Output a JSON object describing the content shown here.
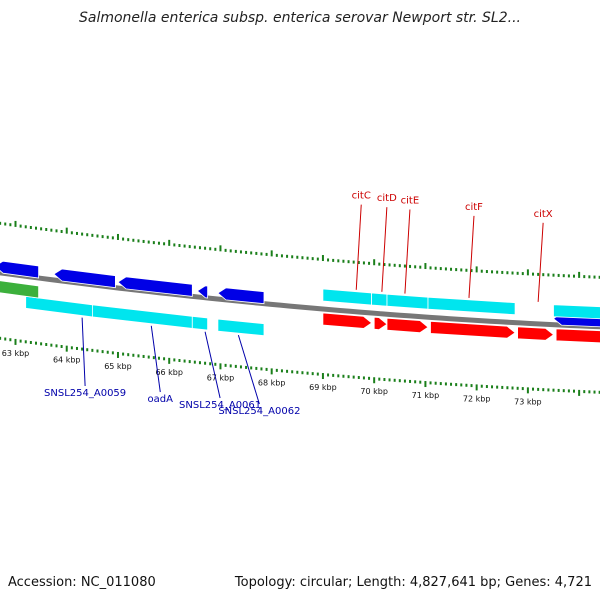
{
  "title": "Salmonella enterica subsp. enterica serovar Newport str. SL2...",
  "footer": {
    "accession": "Accession: NC_011080",
    "summary": "Topology: circular; Length: 4,827,641 bp; Genes: 4,721"
  },
  "colors": {
    "forward_cds": "#00e5ee",
    "reverse_cds": "#0000e6",
    "rna": "#ff0000",
    "highlight": "#3cb03c",
    "backbone": "#777777",
    "tick": "#1a7f1a",
    "red_label": "#cc0000",
    "blue_label": "#0000aa"
  },
  "map": {
    "window_kbp": [
      62.6,
      74.7
    ],
    "kbp_labels": [
      "63 kbp",
      "64 kbp",
      "65 kbp",
      "66 kbp",
      "67 kbp",
      "68 kbp",
      "69 kbp",
      "70 kbp",
      "71 kbp",
      "72 kbp",
      "73 kbp"
    ],
    "kbp_label_values": [
      63,
      64,
      65,
      66,
      67,
      68,
      69,
      70,
      71,
      72,
      73
    ],
    "features": [
      {
        "track": "reverse",
        "start": 62.6,
        "end": 63.45,
        "strand": -1
      },
      {
        "track": "reverse",
        "start": 63.75,
        "end": 64.95,
        "strand": -1
      },
      {
        "track": "reverse",
        "start": 65.0,
        "end": 66.45,
        "strand": -1
      },
      {
        "track": "reverse",
        "start": 66.55,
        "end": 66.75,
        "strand": -1
      },
      {
        "track": "reverse",
        "start": 66.95,
        "end": 67.85,
        "strand": -1
      },
      {
        "track": "reverse",
        "start": 73.5,
        "end": 74.7,
        "strand": -1
      },
      {
        "track": "forward",
        "start": 69.0,
        "end": 69.95,
        "strand": 0
      },
      {
        "track": "forward",
        "start": 69.95,
        "end": 70.25,
        "strand": 0
      },
      {
        "track": "forward",
        "start": 70.25,
        "end": 71.05,
        "strand": 0
      },
      {
        "track": "forward",
        "start": 71.05,
        "end": 72.75,
        "strand": 0
      },
      {
        "track": "forward",
        "start": 73.5,
        "end": 74.7,
        "strand": 0
      },
      {
        "track": "cyan_low",
        "start": 63.2,
        "end": 64.5,
        "strand": 0
      },
      {
        "track": "cyan_low",
        "start": 64.5,
        "end": 66.45,
        "strand": 0
      },
      {
        "track": "cyan_low",
        "start": 66.45,
        "end": 66.75,
        "strand": 0
      },
      {
        "track": "cyan_low",
        "start": 66.95,
        "end": 67.85,
        "strand": 0
      },
      {
        "track": "highlight",
        "start": 62.6,
        "end": 63.45,
        "strand": 0
      },
      {
        "track": "rna",
        "start": 69.0,
        "end": 69.95,
        "strand": 1
      },
      {
        "track": "rna",
        "start": 70.0,
        "end": 70.25,
        "strand": 1
      },
      {
        "track": "rna",
        "start": 70.25,
        "end": 71.05,
        "strand": 1
      },
      {
        "track": "rna",
        "start": 71.1,
        "end": 72.75,
        "strand": 1
      },
      {
        "track": "rna",
        "start": 72.8,
        "end": 73.5,
        "strand": 1
      },
      {
        "track": "rna",
        "start": 73.55,
        "end": 74.7,
        "strand": 1
      }
    ],
    "top_labels": [
      {
        "text": "citC",
        "kbp": 69.65
      },
      {
        "text": "citD",
        "kbp": 70.15
      },
      {
        "text": "citE",
        "kbp": 70.6
      },
      {
        "text": "citF",
        "kbp": 71.85
      },
      {
        "text": "citX",
        "kbp": 73.2
      }
    ],
    "bottom_labels": [
      {
        "text": "SNSL254_A0059",
        "kbp": 64.3
      },
      {
        "text": "oadA",
        "kbp": 65.65
      },
      {
        "text": "SNSL254_A0061",
        "kbp": 66.7
      },
      {
        "text": "SNSL254_A0062",
        "kbp": 67.35
      }
    ]
  }
}
